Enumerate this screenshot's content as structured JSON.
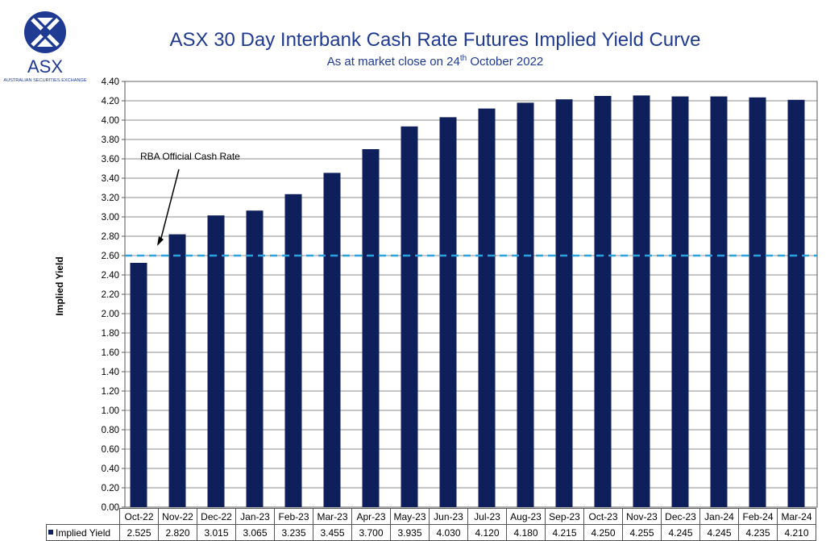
{
  "logo": {
    "text": "ASX",
    "subtext": "AUSTRALIAN SECURITIES EXCHANGE",
    "color": "#1f3a93"
  },
  "header": {
    "title": "ASX 30 Day Interbank Cash Rate Futures Implied Yield Curve",
    "subtitle_pre": "As at market close on 24",
    "subtitle_sup": "th",
    "subtitle_post": " October 2022"
  },
  "chart_data": {
    "type": "bar",
    "title": "ASX 30 Day Interbank Cash Rate Futures Implied Yield Curve",
    "subtitle": "As at market close on 24th October 2022",
    "xlabel": "",
    "ylabel": "Implied Yield",
    "ylim": [
      0,
      4.4
    ],
    "ytick_step": 0.2,
    "yticks": [
      "0.00",
      "0.20",
      "0.40",
      "0.60",
      "0.80",
      "1.00",
      "1.20",
      "1.40",
      "1.60",
      "1.80",
      "2.00",
      "2.20",
      "2.40",
      "2.60",
      "2.80",
      "3.00",
      "3.20",
      "3.40",
      "3.60",
      "3.80",
      "4.00",
      "4.20",
      "4.40"
    ],
    "grid": true,
    "categories": [
      "Oct-22",
      "Nov-22",
      "Dec-22",
      "Jan-23",
      "Feb-23",
      "Mar-23",
      "Apr-23",
      "May-23",
      "Jun-23",
      "Jul-23",
      "Aug-23",
      "Sep-23",
      "Oct-23",
      "Nov-23",
      "Dec-23",
      "Jan-24",
      "Feb-24",
      "Mar-24"
    ],
    "series": [
      {
        "name": "Implied Yield",
        "color": "#0f1f5c",
        "values": [
          2.525,
          2.82,
          3.015,
          3.065,
          3.235,
          3.455,
          3.7,
          3.935,
          4.03,
          4.12,
          4.18,
          4.215,
          4.25,
          4.255,
          4.245,
          4.245,
          4.235,
          4.21
        ],
        "value_labels": [
          "2.525",
          "2.820",
          "3.015",
          "3.065",
          "3.235",
          "3.455",
          "3.700",
          "3.935",
          "4.030",
          "4.120",
          "4.180",
          "4.215",
          "4.250",
          "4.255",
          "4.245",
          "4.245",
          "4.235",
          "4.210"
        ]
      }
    ],
    "reference_line": {
      "value": 2.6,
      "color": "#2aa3dc",
      "style": "dashed"
    },
    "annotations": [
      {
        "text": "RBA Official Cash Rate",
        "points_to_value": 2.6
      }
    ],
    "legend": "data-table"
  }
}
